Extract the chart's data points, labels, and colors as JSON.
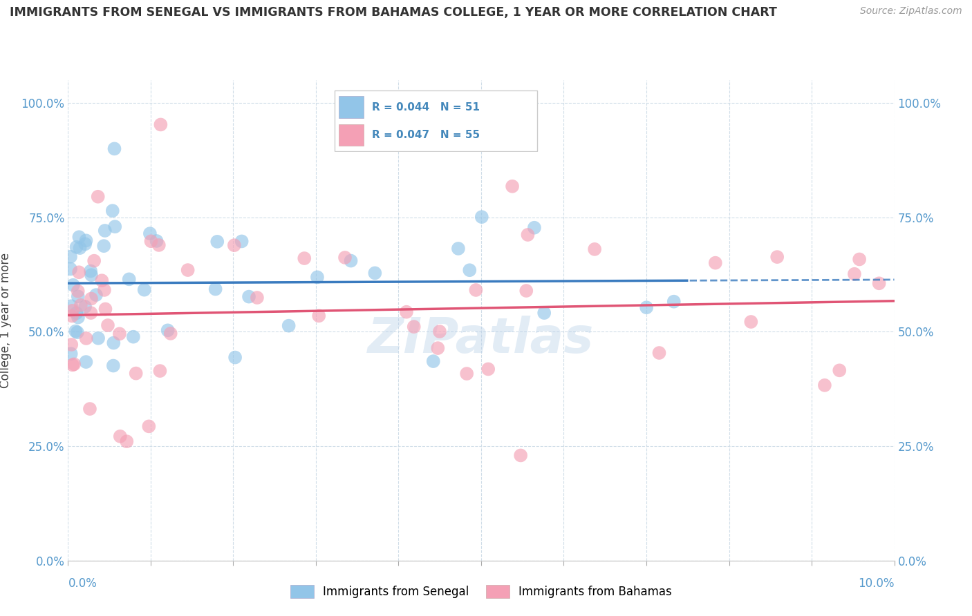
{
  "title": "IMMIGRANTS FROM SENEGAL VS IMMIGRANTS FROM BAHAMAS COLLEGE, 1 YEAR OR MORE CORRELATION CHART",
  "source": "Source: ZipAtlas.com",
  "ylabel": "College, 1 year or more",
  "ytick_labels": [
    "0.0%",
    "25.0%",
    "50.0%",
    "75.0%",
    "100.0%"
  ],
  "ytick_values": [
    0.0,
    0.25,
    0.5,
    0.75,
    1.0
  ],
  "xtick_labels": [
    "0.0%",
    "10.0%"
  ],
  "xmin": 0.0,
  "xmax": 0.1,
  "ymin": 0.0,
  "ymax": 1.05,
  "legend_r1": "R = 0.044",
  "legend_n1": "N = 51",
  "legend_r2": "R = 0.047",
  "legend_n2": "N = 55",
  "color_senegal": "#92c5e8",
  "color_bahamas": "#f4a0b5",
  "trendline_senegal_color": "#3a7bbf",
  "trendline_bahamas_color": "#e05575",
  "watermark": "ZIPatlas",
  "legend_label1": "Immigrants from Senegal",
  "legend_label2": "Immigrants from Bahamas",
  "senegal_seed": 42,
  "bahamas_seed": 77
}
